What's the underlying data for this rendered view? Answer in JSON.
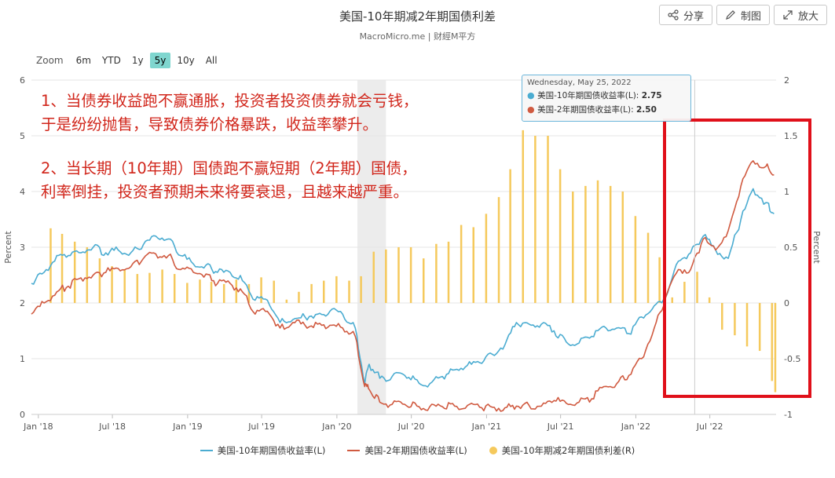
{
  "header": {
    "title": "美国-10年期减2年期国债利差",
    "subtitle": "MacroMicro.me | 财經M平方"
  },
  "toolbar": {
    "share_label": "分享",
    "draw_label": "制图",
    "enlarge_label": "放大"
  },
  "zoom": {
    "label": "Zoom",
    "buttons": [
      "6m",
      "YTD",
      "1y",
      "5y",
      "10y",
      "All"
    ],
    "active": "5y"
  },
  "tooltip": {
    "date": "Wednesday, May 25, 2022",
    "row1_label": "美国-10年期国债收益率(L): ",
    "row1_value": "2.75",
    "row2_label": "美国-2年期国债收益率(L): ",
    "row2_value": "2.50"
  },
  "annotation": {
    "line1": "1、当债券收益跑不赢通胀，投资者投资债券就会亏钱，",
    "line2": "于是纷纷抛售，导致债券价格暴跌，收益率攀升。",
    "line3": "2、当长期（10年期）国债跑不赢短期（2年期）国债，",
    "line4": "利率倒挂，投资者预期未来将要衰退，且越来越严重。"
  },
  "colors": {
    "series_10y": "#4bacd1",
    "series_2y": "#d05a40",
    "spread_bars": "#f5c95c",
    "highlight_box": "#e0101a",
    "recession_shade": "#ececec",
    "zoom_active": "#7fd6cf",
    "tooltip_border": "#6cb6db"
  },
  "chart_data": {
    "type": "line",
    "title": "美国-10年期减2年期国债利差",
    "x_ticks": [
      "Jan '18",
      "Jul '18",
      "Jan '19",
      "Jul '19",
      "Jan '20",
      "Jul '20",
      "Jan '21",
      "Jul '21",
      "Jan '22",
      "Jul '22"
    ],
    "x_range": [
      "2017-12-15",
      "2022-12-10"
    ],
    "y_left": {
      "label": "Percent",
      "range": [
        0,
        6
      ],
      "ticks": [
        0,
        1,
        2,
        3,
        4,
        5,
        6
      ]
    },
    "y_right": {
      "label": "Percent",
      "range": [
        -1,
        2
      ],
      "ticks": [
        "-1",
        "-0.5",
        "0",
        "0.5",
        "1",
        "1.5",
        "2"
      ]
    },
    "shaded_period": [
      "2020-02-20",
      "2020-04-30"
    ],
    "series": [
      {
        "name": "美国-10年期国债收益率(L)",
        "axis": "left",
        "points": [
          [
            "2017-12-15",
            2.35
          ],
          [
            "2018-01-15",
            2.55
          ],
          [
            "2018-02-15",
            2.85
          ],
          [
            "2018-03-15",
            2.85
          ],
          [
            "2018-04-15",
            2.9
          ],
          [
            "2018-05-15",
            3.0
          ],
          [
            "2018-06-15",
            2.9
          ],
          [
            "2018-07-15",
            2.95
          ],
          [
            "2018-08-15",
            2.9
          ],
          [
            "2018-09-15",
            3.05
          ],
          [
            "2018-10-15",
            3.2
          ],
          [
            "2018-11-15",
            3.15
          ],
          [
            "2018-12-15",
            2.85
          ],
          [
            "2019-01-15",
            2.7
          ],
          [
            "2019-02-15",
            2.68
          ],
          [
            "2019-03-15",
            2.55
          ],
          [
            "2019-04-15",
            2.55
          ],
          [
            "2019-05-15",
            2.4
          ],
          [
            "2019-06-15",
            2.05
          ],
          [
            "2019-07-15",
            2.05
          ],
          [
            "2019-08-15",
            1.65
          ],
          [
            "2019-09-15",
            1.7
          ],
          [
            "2019-10-15",
            1.75
          ],
          [
            "2019-11-15",
            1.8
          ],
          [
            "2019-12-15",
            1.85
          ],
          [
            "2020-01-15",
            1.8
          ],
          [
            "2020-02-15",
            1.55
          ],
          [
            "2020-03-09",
            0.55
          ],
          [
            "2020-03-20",
            0.9
          ],
          [
            "2020-04-15",
            0.65
          ],
          [
            "2020-05-15",
            0.68
          ],
          [
            "2020-06-15",
            0.7
          ],
          [
            "2020-07-15",
            0.62
          ],
          [
            "2020-08-15",
            0.55
          ],
          [
            "2020-09-15",
            0.68
          ],
          [
            "2020-10-15",
            0.8
          ],
          [
            "2020-11-15",
            0.88
          ],
          [
            "2020-12-15",
            0.93
          ],
          [
            "2021-01-15",
            1.08
          ],
          [
            "2021-02-15",
            1.25
          ],
          [
            "2021-03-15",
            1.65
          ],
          [
            "2021-04-15",
            1.62
          ],
          [
            "2021-05-15",
            1.62
          ],
          [
            "2021-06-15",
            1.5
          ],
          [
            "2021-07-15",
            1.3
          ],
          [
            "2021-08-15",
            1.28
          ],
          [
            "2021-09-15",
            1.4
          ],
          [
            "2021-10-15",
            1.58
          ],
          [
            "2021-11-15",
            1.55
          ],
          [
            "2021-12-15",
            1.45
          ],
          [
            "2022-01-15",
            1.75
          ],
          [
            "2022-02-15",
            1.95
          ],
          [
            "2022-03-15",
            2.1
          ],
          [
            "2022-04-15",
            2.75
          ],
          [
            "2022-05-15",
            2.9
          ],
          [
            "2022-06-15",
            3.2
          ],
          [
            "2022-07-15",
            2.95
          ],
          [
            "2022-08-15",
            2.8
          ],
          [
            "2022-09-15",
            3.5
          ],
          [
            "2022-10-15",
            4.05
          ],
          [
            "2022-11-15",
            3.8
          ],
          [
            "2022-12-05",
            3.6
          ]
        ]
      },
      {
        "name": "美国-2年期国债收益率(L)",
        "axis": "left",
        "points": [
          [
            "2017-12-15",
            1.8
          ],
          [
            "2018-01-15",
            2.0
          ],
          [
            "2018-02-15",
            2.2
          ],
          [
            "2018-03-15",
            2.3
          ],
          [
            "2018-04-15",
            2.45
          ],
          [
            "2018-05-15",
            2.5
          ],
          [
            "2018-06-15",
            2.55
          ],
          [
            "2018-07-15",
            2.62
          ],
          [
            "2018-08-15",
            2.65
          ],
          [
            "2018-09-15",
            2.8
          ],
          [
            "2018-10-15",
            2.88
          ],
          [
            "2018-11-15",
            2.85
          ],
          [
            "2018-12-15",
            2.6
          ],
          [
            "2019-01-15",
            2.55
          ],
          [
            "2019-02-15",
            2.52
          ],
          [
            "2019-03-15",
            2.35
          ],
          [
            "2019-04-15",
            2.35
          ],
          [
            "2019-05-15",
            2.2
          ],
          [
            "2019-06-15",
            1.8
          ],
          [
            "2019-07-15",
            1.85
          ],
          [
            "2019-08-15",
            1.55
          ],
          [
            "2019-09-15",
            1.65
          ],
          [
            "2019-10-15",
            1.6
          ],
          [
            "2019-11-15",
            1.62
          ],
          [
            "2019-12-15",
            1.6
          ],
          [
            "2020-01-15",
            1.55
          ],
          [
            "2020-02-15",
            1.4
          ],
          [
            "2020-03-09",
            0.5
          ],
          [
            "2020-03-20",
            0.45
          ],
          [
            "2020-04-15",
            0.22
          ],
          [
            "2020-05-15",
            0.18
          ],
          [
            "2020-06-15",
            0.18
          ],
          [
            "2020-07-15",
            0.15
          ],
          [
            "2020-08-15",
            0.14
          ],
          [
            "2020-09-15",
            0.14
          ],
          [
            "2020-10-15",
            0.15
          ],
          [
            "2020-11-15",
            0.16
          ],
          [
            "2020-12-15",
            0.13
          ],
          [
            "2021-01-15",
            0.13
          ],
          [
            "2021-02-15",
            0.12
          ],
          [
            "2021-03-15",
            0.15
          ],
          [
            "2021-04-15",
            0.16
          ],
          [
            "2021-05-15",
            0.15
          ],
          [
            "2021-06-15",
            0.25
          ],
          [
            "2021-07-15",
            0.2
          ],
          [
            "2021-08-15",
            0.22
          ],
          [
            "2021-09-15",
            0.28
          ],
          [
            "2021-10-15",
            0.5
          ],
          [
            "2021-11-15",
            0.55
          ],
          [
            "2021-12-15",
            0.7
          ],
          [
            "2022-01-15",
            1.0
          ],
          [
            "2022-02-15",
            1.55
          ],
          [
            "2022-03-15",
            2.1
          ],
          [
            "2022-04-15",
            2.6
          ],
          [
            "2022-05-15",
            2.6
          ],
          [
            "2022-06-15",
            3.15
          ],
          [
            "2022-07-15",
            2.95
          ],
          [
            "2022-08-15",
            3.3
          ],
          [
            "2022-09-15",
            4.1
          ],
          [
            "2022-10-15",
            4.55
          ],
          [
            "2022-11-15",
            4.45
          ],
          [
            "2022-12-05",
            4.3
          ]
        ]
      },
      {
        "name": "美国-10年期减2年期国债利差(R)",
        "axis": "right",
        "type": "bar",
        "points": [
          [
            "2018-01-31",
            0.67
          ],
          [
            "2018-02-28",
            0.62
          ],
          [
            "2018-03-31",
            0.55
          ],
          [
            "2018-04-30",
            0.5
          ],
          [
            "2018-05-31",
            0.4
          ],
          [
            "2018-06-30",
            0.33
          ],
          [
            "2018-07-31",
            0.3
          ],
          [
            "2018-08-31",
            0.26
          ],
          [
            "2018-09-30",
            0.27
          ],
          [
            "2018-10-31",
            0.3
          ],
          [
            "2018-11-30",
            0.26
          ],
          [
            "2018-12-31",
            0.18
          ],
          [
            "2019-01-31",
            0.21
          ],
          [
            "2019-02-28",
            0.19
          ],
          [
            "2019-03-31",
            0.17
          ],
          [
            "2019-04-30",
            0.21
          ],
          [
            "2019-05-31",
            0.17
          ],
          [
            "2019-06-30",
            0.23
          ],
          [
            "2019-07-31",
            0.2
          ],
          [
            "2019-08-31",
            0.03
          ],
          [
            "2019-09-30",
            0.1
          ],
          [
            "2019-10-31",
            0.17
          ],
          [
            "2019-11-30",
            0.2
          ],
          [
            "2019-12-31",
            0.24
          ],
          [
            "2020-01-31",
            0.2
          ],
          [
            "2020-02-29",
            0.24
          ],
          [
            "2020-03-31",
            0.46
          ],
          [
            "2020-04-30",
            0.48
          ],
          [
            "2020-05-31",
            0.5
          ],
          [
            "2020-06-30",
            0.5
          ],
          [
            "2020-07-31",
            0.4
          ],
          [
            "2020-08-31",
            0.53
          ],
          [
            "2020-09-30",
            0.55
          ],
          [
            "2020-10-31",
            0.7
          ],
          [
            "2020-11-30",
            0.68
          ],
          [
            "2020-12-31",
            0.8
          ],
          [
            "2021-01-31",
            0.95
          ],
          [
            "2021-02-28",
            1.2
          ],
          [
            "2021-03-31",
            1.55
          ],
          [
            "2021-04-30",
            1.5
          ],
          [
            "2021-05-31",
            1.5
          ],
          [
            "2021-06-30",
            1.2
          ],
          [
            "2021-07-31",
            1.0
          ],
          [
            "2021-08-31",
            1.05
          ],
          [
            "2021-09-30",
            1.1
          ],
          [
            "2021-10-31",
            1.05
          ],
          [
            "2021-11-30",
            1.0
          ],
          [
            "2021-12-31",
            0.78
          ],
          [
            "2022-01-31",
            0.63
          ],
          [
            "2022-02-28",
            0.41
          ],
          [
            "2022-03-31",
            0.05
          ],
          [
            "2022-04-30",
            0.19
          ],
          [
            "2022-05-31",
            0.28
          ],
          [
            "2022-06-30",
            0.05
          ],
          [
            "2022-07-31",
            -0.24
          ],
          [
            "2022-08-31",
            -0.29
          ],
          [
            "2022-09-30",
            -0.39
          ],
          [
            "2022-10-31",
            -0.43
          ],
          [
            "2022-11-30",
            -0.7
          ],
          [
            "2022-12-08",
            -0.8
          ]
        ]
      }
    ],
    "hover_date": "2022-05-25"
  }
}
